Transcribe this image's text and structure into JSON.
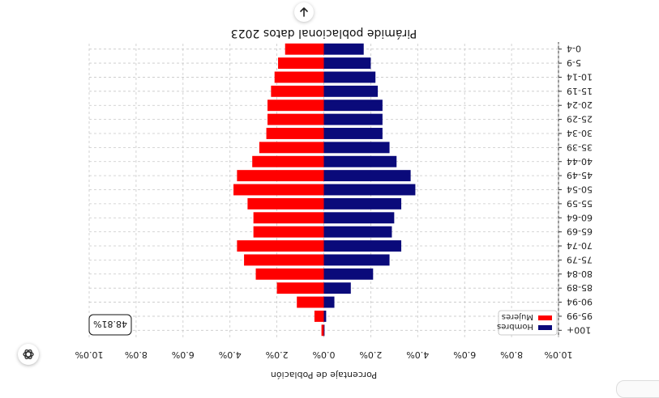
{
  "ui": {
    "scroll_button_icon": "arrow-up-icon",
    "logo_icon": "openai-logo-icon"
  },
  "chart_data": {
    "type": "bar",
    "orientation": "horizontal",
    "rendered_rotated_180": true,
    "title": "Pirámide poblacional datos 2023",
    "xlabel": "Porcentaje de Población",
    "categories": [
      "0-4",
      "5-9",
      "10-14",
      "15-19",
      "20-24",
      "25-29",
      "30-34",
      "35-39",
      "40-44",
      "45-49",
      "50-54",
      "55-59",
      "60-64",
      "65-69",
      "70-74",
      "75-79",
      "80-84",
      "85-89",
      "90-94",
      "95-99",
      "100+"
    ],
    "series": [
      {
        "name": "Hombres",
        "color": "#0a0a7a",
        "side": "left",
        "values": [
          1.7,
          2.0,
          2.2,
          2.3,
          2.5,
          2.5,
          2.5,
          2.8,
          3.1,
          3.7,
          3.9,
          3.3,
          3.0,
          2.9,
          3.3,
          2.8,
          2.1,
          1.15,
          0.45,
          0.1,
          0.03
        ]
      },
      {
        "name": "Mujeres",
        "color": "#ff0000",
        "side": "right",
        "values": [
          1.65,
          1.95,
          2.1,
          2.25,
          2.4,
          2.4,
          2.45,
          2.75,
          3.05,
          3.7,
          3.85,
          3.25,
          3.0,
          3.0,
          3.7,
          3.4,
          2.9,
          2.0,
          1.15,
          0.4,
          0.1
        ]
      }
    ],
    "xticks": [
      "10.0%",
      "8.0%",
      "6.0%",
      "4.0%",
      "2.0%",
      "0.0%",
      "2.0%",
      "4.0%",
      "6.0%",
      "8.0%",
      "10.0%"
    ],
    "xlim": [
      -10,
      10
    ],
    "xticks_position": "top",
    "grid": true,
    "legend_position": "lower right",
    "annotation": "48.81%"
  }
}
